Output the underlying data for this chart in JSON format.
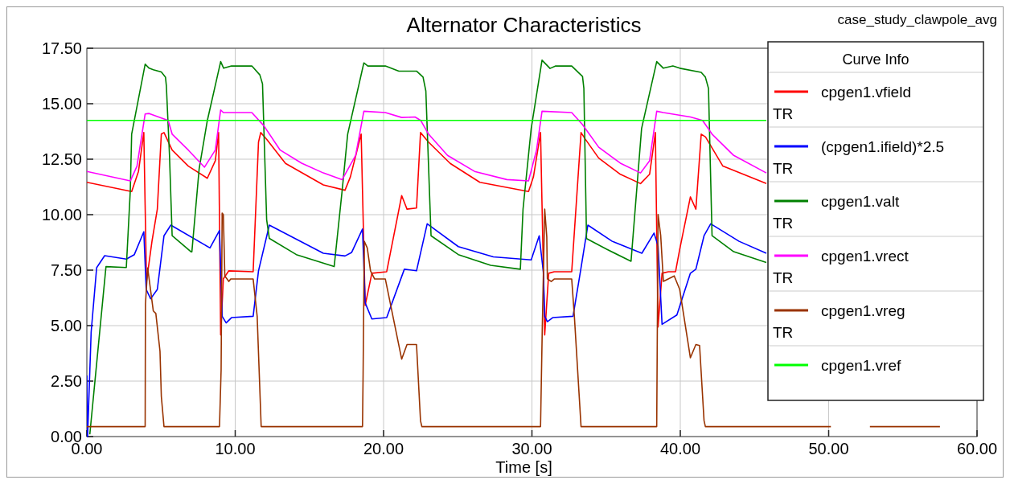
{
  "chart_data": {
    "type": "line",
    "title": "Alternator Characteristics",
    "subtitle": "case_study_clawpole_avg",
    "xlabel": "Time [s]",
    "legend_title": "Curve Info",
    "legend": "right",
    "grid": true,
    "line_style": "solid",
    "marker": "none",
    "xlim": [
      0,
      60
    ],
    "ylim": [
      0,
      17.5
    ],
    "xticks": [
      {
        "value": 0,
        "label": "0.00"
      },
      {
        "value": 10,
        "label": "10.00"
      },
      {
        "value": 20,
        "label": "20.00"
      },
      {
        "value": 30,
        "label": "30.00"
      },
      {
        "value": 40,
        "label": "40.00"
      },
      {
        "value": 50,
        "label": "50.00"
      },
      {
        "value": 60,
        "label": "60.00"
      }
    ],
    "yticks": [
      {
        "value": 0,
        "label": "0.00"
      },
      {
        "value": 2.5,
        "label": "2.50"
      },
      {
        "value": 5,
        "label": "5.00"
      },
      {
        "value": 7.5,
        "label": "7.50"
      },
      {
        "value": 10,
        "label": "10.00"
      },
      {
        "value": 12.5,
        "label": "12.50"
      },
      {
        "value": 15,
        "label": "15.00"
      },
      {
        "value": 17.5,
        "label": "17.50"
      }
    ],
    "series": [
      {
        "name": "cpgen1.vfield TR",
        "color": "#ff0000",
        "x": [
          0,
          3.02,
          3.48,
          3.84,
          4.02,
          4.39,
          4.75,
          5.02,
          5.2,
          5.75,
          6.84,
          8.12,
          8.66,
          8.88,
          9.02,
          9.2,
          9.57,
          11.21,
          11.57,
          11.72,
          12.12,
          13.39,
          15.94,
          17.4,
          17.76,
          18.49,
          18.76,
          19.21,
          20.21,
          21.22,
          21.58,
          22.22,
          22.49,
          23.03,
          24.49,
          26.49,
          29.77,
          30.1,
          30.58,
          30.86,
          31.13,
          31.5,
          32.68,
          33.31,
          33.6,
          34.5,
          35.96,
          37.32,
          37.93,
          38.32,
          38.5,
          38.77,
          39.2,
          39.68,
          39.96,
          40.68,
          41.05,
          41.41,
          41.7,
          42.87,
          45.8
        ],
        "values": [
          11.46,
          11.04,
          11.95,
          13.7,
          6.99,
          8.8,
          10.25,
          13.63,
          13.7,
          12.91,
          12.19,
          11.64,
          12.43,
          13.7,
          4.58,
          7.11,
          7.47,
          7.43,
          13.27,
          13.7,
          13.4,
          12.31,
          11.34,
          11.1,
          11.7,
          13.63,
          5.91,
          7.36,
          7.43,
          10.86,
          10.25,
          10.3,
          13.7,
          13.27,
          12.31,
          11.46,
          11.04,
          11.7,
          13.7,
          4.58,
          7.36,
          7.43,
          7.43,
          13.7,
          13.4,
          12.55,
          11.82,
          11.4,
          11.82,
          13.7,
          4.94,
          7.36,
          7.43,
          7.43,
          8.44,
          10.8,
          10.25,
          13.63,
          13.5,
          12.19,
          11.4
        ]
      },
      {
        "name": "(cpgen1.ifield)*2.5 TR",
        "color": "#0000ff",
        "x": [
          0,
          0.05,
          0.29,
          0.66,
          1.2,
          2.66,
          3.2,
          3.84,
          4.0,
          4.3,
          4.75,
          5.2,
          5.66,
          8.3,
          8.94,
          9.12,
          9.39,
          9.75,
          11.21,
          11.57,
          12.3,
          15.94,
          17.4,
          17.85,
          18.58,
          18.76,
          19.21,
          20.21,
          21.4,
          22.22,
          22.94,
          25.04,
          27.4,
          29.95,
          30.49,
          30.77,
          30.86,
          31.04,
          31.4,
          32.77,
          33.31,
          33.77,
          35.41,
          37.41,
          38.23,
          38.5,
          38.77,
          39.77,
          40.68,
          41.05,
          41.6,
          42.05,
          43.96,
          45.8
        ],
        "values": [
          2.75,
          0,
          4.71,
          7.61,
          8.15,
          8.0,
          8.2,
          9.23,
          6.63,
          6.21,
          6.63,
          9.05,
          9.53,
          8.5,
          9.29,
          5.42,
          5.12,
          5.36,
          5.42,
          7.47,
          9.53,
          8.26,
          8.14,
          8.3,
          9.35,
          6.03,
          5.3,
          5.36,
          7.54,
          7.47,
          9.59,
          8.56,
          8.1,
          7.96,
          9.05,
          7.4,
          5.42,
          5.18,
          5.36,
          5.42,
          7.6,
          9.53,
          8.8,
          8.26,
          9.17,
          8.6,
          5.06,
          5.48,
          7.36,
          7.54,
          9.05,
          9.59,
          8.8,
          8.26
        ]
      },
      {
        "name": "cpgen1.valt TR",
        "color": "#008000",
        "x": [
          0.2,
          1.29,
          2.66,
          2.93,
          3.02,
          3.93,
          4.2,
          4.48,
          5.02,
          5.3,
          5.36,
          5.57,
          5.75,
          7.02,
          7.08,
          7.57,
          8.12,
          9.02,
          9.22,
          9.75,
          11.12,
          11.66,
          11.84,
          12.12,
          12.3,
          14.12,
          16.67,
          17.21,
          17.58,
          18.67,
          18.94,
          20.12,
          21.03,
          22.22,
          22.66,
          22.85,
          23.2,
          25.04,
          27.22,
          29.22,
          29.4,
          29.95,
          30.68,
          31.22,
          31.6,
          32.68,
          33.41,
          33.5,
          33.68,
          35.04,
          36.68,
          37.39,
          38.41,
          38.86,
          39.5,
          39.96,
          41.41,
          41.69,
          41.9,
          42.14,
          43.6,
          45.8
        ],
        "values": [
          0.1,
          7.66,
          7.62,
          11.1,
          13.63,
          16.78,
          16.6,
          16.53,
          16.43,
          16.2,
          15.8,
          12.68,
          9.05,
          8.33,
          8.33,
          12.07,
          14.24,
          16.9,
          16.6,
          16.7,
          16.7,
          16.3,
          15.9,
          9.77,
          8.93,
          8.2,
          7.66,
          11.1,
          13.63,
          16.84,
          16.7,
          16.7,
          16.47,
          16.47,
          16.2,
          15.57,
          9.05,
          8.2,
          7.72,
          7.54,
          10.25,
          13.88,
          16.96,
          16.59,
          16.7,
          16.7,
          16.23,
          15.69,
          8.92,
          8.44,
          7.9,
          13.88,
          16.9,
          16.6,
          16.7,
          16.6,
          16.41,
          16.2,
          15.69,
          9.05,
          8.33,
          7.84
        ]
      },
      {
        "name": "cpgen1.vrect TR",
        "color": "#ff00ff",
        "x": [
          0,
          2.93,
          3.38,
          3.93,
          4.2,
          5.02,
          5.48,
          5.75,
          6.84,
          7.93,
          8.66,
          9.02,
          9.2,
          11.12,
          11.94,
          13.03,
          14.48,
          15.94,
          17.21,
          18.12,
          18.67,
          20.12,
          21.22,
          22.12,
          22.5,
          23.03,
          24.31,
          26.13,
          28.31,
          29.77,
          30.31,
          30.68,
          32.68,
          33.41,
          34.5,
          35.96,
          37.32,
          37.93,
          38.41,
          38.86,
          40.68,
          41.5,
          42.14,
          43.6,
          45.8
        ],
        "values": [
          11.95,
          11.52,
          12.19,
          14.54,
          14.56,
          14.36,
          14.25,
          13.63,
          12.91,
          12.14,
          12.91,
          14.72,
          14.6,
          14.6,
          14.0,
          12.91,
          12.32,
          11.88,
          11.58,
          12.68,
          14.66,
          14.6,
          14.38,
          14.4,
          14.25,
          13.63,
          12.67,
          11.95,
          11.58,
          11.52,
          12.91,
          14.66,
          14.6,
          14.06,
          13.04,
          12.32,
          11.88,
          12.43,
          14.66,
          14.6,
          14.4,
          14.25,
          13.63,
          12.67,
          11.88
        ]
      },
      {
        "name": "cpgen1.vreg TR",
        "color": "#993300",
        "x": [
          0,
          3.93,
          3.95,
          4.1,
          4.48,
          4.65,
          4.93,
          5.02,
          5.2,
          8.94,
          9.05,
          9.12,
          9.2,
          9.3,
          9.57,
          9.7,
          11.21,
          11.48,
          11.75,
          18.58,
          18.62,
          18.7,
          18.9,
          19.12,
          19.4,
          20.12,
          21.22,
          21.58,
          22.22,
          22.49,
          22.58,
          30.58,
          30.7,
          30.86,
          31.0,
          31.04,
          31.3,
          31.5,
          32.68,
          32.86,
          33.31,
          38.41,
          38.5,
          38.68,
          38.86,
          39.59,
          39.96,
          40.68,
          41.05,
          41.3,
          41.6,
          41.69,
          50.15,
          51.5,
          52.78,
          57.5
        ],
        "values": [
          0.45,
          0.45,
          5.98,
          7.6,
          5.66,
          5.55,
          3.85,
          1.81,
          0.45,
          0.45,
          3.0,
          10.07,
          10.0,
          7.24,
          6.99,
          7.1,
          7.1,
          5.42,
          0.45,
          0.45,
          2.8,
          8.8,
          8.5,
          7.47,
          7.1,
          7.1,
          3.49,
          4.15,
          4.15,
          0.71,
          0.45,
          0.45,
          5.0,
          10.25,
          9.0,
          7.11,
          6.99,
          7.1,
          7.1,
          5.42,
          0.45,
          0.45,
          10.01,
          9.05,
          6.99,
          7.24,
          6.63,
          3.55,
          4.15,
          4.1,
          0.72,
          0.45,
          0.45,
          null,
          0.45,
          0.45
        ]
      },
      {
        "name": "cpgen1.vref",
        "color": "#00ff00",
        "x": [
          0,
          45.8
        ],
        "values": [
          14.25,
          14.25
        ]
      }
    ]
  }
}
